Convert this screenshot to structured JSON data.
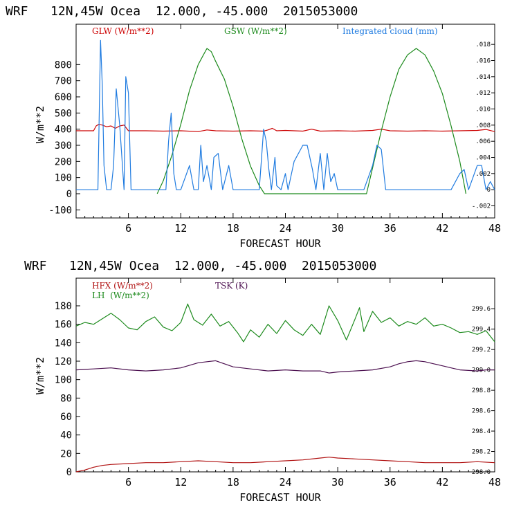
{
  "chart_data": [
    {
      "type": "line",
      "title": "WRF   12N,45W Ocea  12.000, -45.000  2015053000",
      "xlabel": "FORECAST HOUR",
      "ylabel": "W/m**2",
      "xlim": [
        0,
        48
      ],
      "ylim": [
        -150,
        1050
      ],
      "ylim_right": [
        -0.0035,
        0.0205
      ],
      "x_ticks": [
        6,
        12,
        18,
        24,
        30,
        36,
        42,
        48
      ],
      "x_tick_labels": [
        "6",
        "12",
        "18",
        "24",
        "30",
        "36",
        "42",
        "48"
      ],
      "y_ticks": [
        -100,
        0,
        100,
        200,
        300,
        400,
        500,
        600,
        700,
        800
      ],
      "y_tick_labels": [
        "-100",
        "0",
        "100",
        "200",
        "300",
        "400",
        "500",
        "600",
        "700",
        "800"
      ],
      "y_right_ticks": [
        -0.002,
        0,
        0.002,
        0.004,
        0.006,
        0.008,
        0.01,
        0.012,
        0.014,
        0.016,
        0.018
      ],
      "y_right_tick_labels": [
        "-.002",
        "0",
        ".002",
        ".004",
        ".006",
        ".008",
        ".010",
        ".012",
        ".014",
        ".016",
        ".018"
      ],
      "legend": [
        "GLW (W/m**2)",
        "GSW (W/m**2)",
        "Integrated cloud (mm)"
      ],
      "series": [
        {
          "name": "GLW (W/m**2)",
          "color": "#cc0000",
          "axis": "left",
          "x": [
            0,
            2,
            2.3,
            2.6,
            3.0,
            3.5,
            4.0,
            4.5,
            5.0,
            5.5,
            6.0,
            8,
            10,
            12,
            14,
            15,
            16,
            18,
            20,
            21.5,
            22.0,
            22.5,
            23,
            24,
            26,
            27,
            28,
            30,
            32,
            34,
            35,
            36,
            38,
            40,
            42,
            44,
            46,
            47,
            48
          ],
          "values": [
            390,
            390,
            420,
            430,
            425,
            415,
            420,
            405,
            420,
            425,
            390,
            390,
            388,
            390,
            385,
            395,
            390,
            388,
            390,
            388,
            395,
            405,
            390,
            392,
            388,
            400,
            388,
            390,
            388,
            392,
            400,
            390,
            388,
            390,
            388,
            390,
            392,
            398,
            385
          ]
        },
        {
          "name": "GSW (W/m**2)",
          "color": "#1c8a1c",
          "axis": "left",
          "x": [
            9.3,
            10,
            11,
            12,
            13,
            14,
            14.6,
            15,
            15.5,
            16,
            17,
            18,
            19,
            20,
            21,
            21.6,
            33.3,
            34,
            35,
            36,
            37,
            38,
            39,
            40,
            41,
            42,
            43,
            44,
            44.7
          ],
          "values": [
            0,
            80,
            240,
            430,
            640,
            800,
            860,
            900,
            880,
            820,
            710,
            540,
            340,
            170,
            50,
            0,
            0,
            160,
            390,
            600,
            770,
            860,
            900,
            860,
            760,
            620,
            420,
            200,
            0
          ]
        },
        {
          "name": "Integrated cloud (mm)",
          "color": "#1f7be0",
          "axis": "right",
          "x": [
            0,
            2.5,
            2.8,
            3.0,
            3.2,
            3.5,
            4.0,
            4.3,
            4.6,
            5.0,
            5.5,
            5.7,
            6.0,
            6.3,
            10.3,
            10.6,
            10.9,
            11.2,
            11.5,
            12,
            13,
            13.5,
            14,
            14.3,
            14.6,
            15,
            15.5,
            15.8,
            16.3,
            16.8,
            17.5,
            18,
            18.5,
            19,
            21,
            21.5,
            21.8,
            22.1,
            22.4,
            22.8,
            23,
            23.5,
            24,
            24.3,
            25,
            26,
            26.5,
            26.8,
            27.1,
            27.5,
            28,
            28.4,
            28.8,
            29.2,
            29.6,
            30,
            31,
            33,
            34,
            34.5,
            35,
            35.5,
            36,
            40,
            43,
            44,
            44.5,
            45,
            46,
            46.5,
            47,
            47.5,
            48
          ],
          "values": [
            0,
            0,
            0.0185,
            0.013,
            0.003,
            0,
            0,
            0.003,
            0.0125,
            0.008,
            0,
            0.014,
            0.012,
            0,
            0,
            0.006,
            0.0095,
            0.002,
            0,
            0,
            0.003,
            0,
            0,
            0.0055,
            0.001,
            0.003,
            0,
            0.004,
            0.0045,
            0,
            0.003,
            0,
            0,
            0,
            0,
            0.0075,
            0.006,
            0.0025,
            0,
            0.004,
            0.0005,
            0,
            0.002,
            0,
            0.0035,
            0.0055,
            0.0055,
            0.004,
            0.0025,
            0,
            0.0045,
            0,
            0.0045,
            0.001,
            0.002,
            0,
            0,
            0,
            0.003,
            0.0055,
            0.005,
            0,
            0,
            0,
            0,
            0.002,
            0.0025,
            0,
            0.003,
            0.003,
            0,
            0.001,
            0
          ]
        }
      ]
    },
    {
      "type": "line",
      "title": "WRF   12N,45W Ocea  12.000, -45.000  2015053000",
      "xlabel": "FORECAST HOUR",
      "ylabel": "W/m**2",
      "xlim": [
        0,
        48
      ],
      "ylim": [
        0,
        210
      ],
      "ylim_right": [
        298.0,
        299.9
      ],
      "x_ticks": [
        6,
        12,
        18,
        24,
        30,
        36,
        42,
        48
      ],
      "x_tick_labels": [
        "6",
        "12",
        "18",
        "24",
        "30",
        "36",
        "42",
        "48"
      ],
      "y_ticks": [
        0,
        20,
        40,
        60,
        80,
        100,
        120,
        140,
        160,
        180
      ],
      "y_tick_labels": [
        "0",
        "20",
        "40",
        "60",
        "80",
        "100",
        "120",
        "140",
        "160",
        "180"
      ],
      "y_right_ticks": [
        298.0,
        298.2,
        298.4,
        298.6,
        298.8,
        299.0,
        299.2,
        299.4,
        299.6
      ],
      "y_right_tick_labels": [
        "298.0",
        "298.2",
        "298.4",
        "298.6",
        "298.8",
        "299.0",
        "299.2",
        "299.4",
        "299.6"
      ],
      "legend": [
        "HFX (W/m**2)",
        "LH  (W/m**2)",
        "TSK (K)"
      ],
      "series": [
        {
          "name": "HFX (W/m**2)",
          "color": "#b01010",
          "axis": "left",
          "x": [
            0,
            1,
            2,
            3,
            4,
            6,
            8,
            10,
            12,
            14,
            16,
            18,
            20,
            22,
            24,
            26,
            28,
            29,
            30,
            32,
            34,
            36,
            38,
            40,
            42,
            44,
            46,
            48
          ],
          "values": [
            0,
            2,
            5,
            7,
            8,
            9,
            10,
            10,
            11,
            12,
            11,
            10,
            10,
            11,
            12,
            13,
            15,
            16,
            15,
            14,
            13,
            12,
            11,
            10,
            10,
            10,
            11,
            10
          ]
        },
        {
          "name": "LH  (W/m**2)",
          "color": "#1c8a1c",
          "axis": "left",
          "x": [
            0,
            1,
            2,
            3,
            4,
            5,
            6,
            7,
            8,
            9,
            10,
            11,
            12,
            12.8,
            13.5,
            14.5,
            15.5,
            16.5,
            17.5,
            18.5,
            19.2,
            20,
            21,
            22,
            23,
            24,
            25,
            26,
            27,
            28,
            29,
            30,
            31,
            32,
            32.5,
            33,
            34,
            35,
            36,
            37,
            38,
            39,
            40,
            41,
            42,
            43,
            44,
            45,
            46,
            47,
            48
          ],
          "values": [
            158,
            162,
            160,
            166,
            172,
            165,
            156,
            154,
            163,
            168,
            157,
            153,
            162,
            182,
            165,
            159,
            171,
            158,
            163,
            151,
            141,
            154,
            146,
            160,
            150,
            164,
            154,
            148,
            160,
            149,
            180,
            164,
            143,
            166,
            178,
            152,
            174,
            162,
            167,
            158,
            163,
            160,
            167,
            158,
            160,
            156,
            151,
            152,
            149,
            153,
            141
          ]
        },
        {
          "name": "TSK (K)",
          "color": "#4b0f4f",
          "axis": "right",
          "x": [
            0,
            2,
            4,
            6,
            8,
            10,
            12,
            14,
            15,
            16,
            17,
            18,
            20,
            22,
            24,
            26,
            28,
            29,
            30,
            32,
            34,
            36,
            37,
            38,
            39,
            40,
            41,
            42,
            43,
            44,
            46,
            47,
            48
          ],
          "values": [
            299.0,
            299.01,
            299.02,
            299.0,
            298.99,
            299.0,
            299.02,
            299.07,
            299.08,
            299.09,
            299.06,
            299.03,
            299.01,
            298.99,
            299.0,
            298.99,
            298.99,
            298.97,
            298.98,
            298.99,
            299.0,
            299.03,
            299.06,
            299.08,
            299.09,
            299.08,
            299.06,
            299.04,
            299.02,
            299.0,
            298.99,
            299.0,
            299.0
          ]
        }
      ]
    }
  ]
}
